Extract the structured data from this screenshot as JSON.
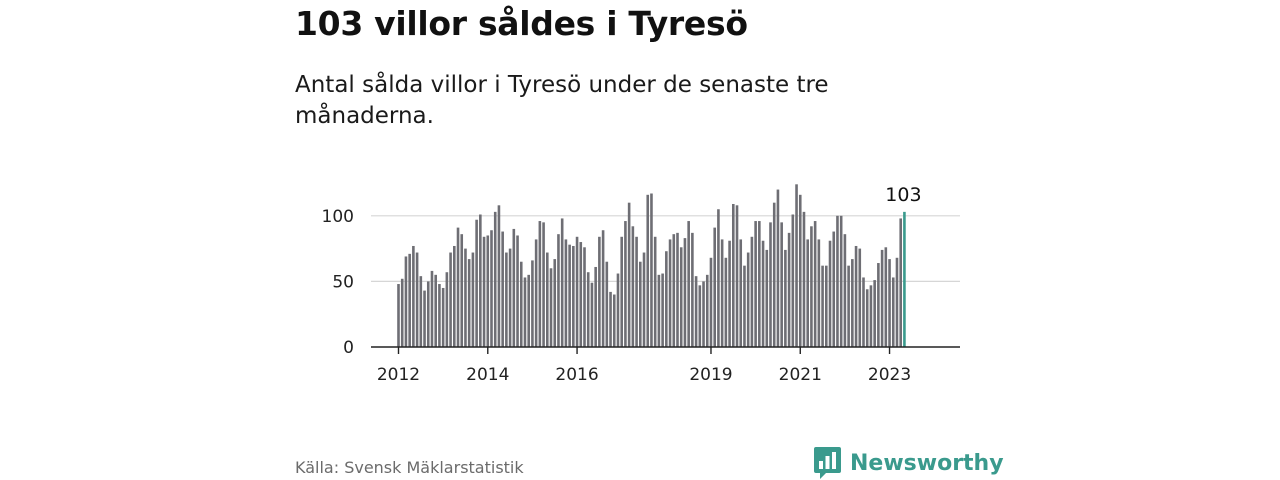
{
  "title": "103 villor såldes i Tyresö",
  "subtitle": "Antal sålda villor i Tyresö under de senaste tre månaderna.",
  "source": "Källa: Svensk Mäklarstatistik",
  "brand": {
    "name": "Newsworthy",
    "icon": "bar-chart-logo-icon"
  },
  "colors": {
    "bar": "#6e6e74",
    "highlight": "#3a9a8d",
    "grid": "#d6d6d6",
    "axis": "#222222"
  },
  "chart_data": {
    "type": "bar",
    "x_start": "2012-01",
    "x_end": "2024-01",
    "values": [
      48,
      52,
      69,
      71,
      77,
      72,
      54,
      43,
      50,
      58,
      55,
      48,
      45,
      57,
      72,
      77,
      91,
      86,
      75,
      67,
      72,
      97,
      101,
      84,
      85,
      89,
      103,
      108,
      88,
      72,
      75,
      90,
      85,
      65,
      53,
      55,
      66,
      82,
      96,
      95,
      72,
      60,
      67,
      86,
      98,
      82,
      78,
      77,
      84,
      80,
      76,
      57,
      49,
      61,
      84,
      89,
      65,
      42,
      40,
      56,
      84,
      96,
      110,
      92,
      84,
      65,
      72,
      116,
      117,
      84,
      55,
      56,
      73,
      82,
      86,
      87,
      76,
      83,
      96,
      87,
      54,
      47,
      50,
      55,
      68,
      91,
      105,
      82,
      68,
      81,
      109,
      108,
      82,
      62,
      72,
      84,
      96,
      96,
      81,
      74,
      95,
      110,
      120,
      95,
      74,
      87,
      101,
      124,
      116,
      103,
      82,
      92,
      96,
      82,
      62,
      62,
      81,
      88,
      100,
      100,
      86,
      62,
      67,
      77,
      75,
      53,
      44,
      47,
      51,
      64,
      74,
      76,
      67,
      53,
      68,
      98,
      103
    ],
    "highlight_label": "103",
    "ylim": [
      0,
      125
    ],
    "y_ticks": [
      0,
      50,
      100
    ],
    "x_ticks": [
      {
        "label": "2012",
        "month_index": 0
      },
      {
        "label": "2014",
        "month_index": 24
      },
      {
        "label": "2016",
        "month_index": 48
      },
      {
        "label": "2019",
        "month_index": 84
      },
      {
        "label": "2021",
        "month_index": 108
      },
      {
        "label": "2023",
        "month_index": 132
      }
    ],
    "grid": true,
    "legend": "none"
  }
}
